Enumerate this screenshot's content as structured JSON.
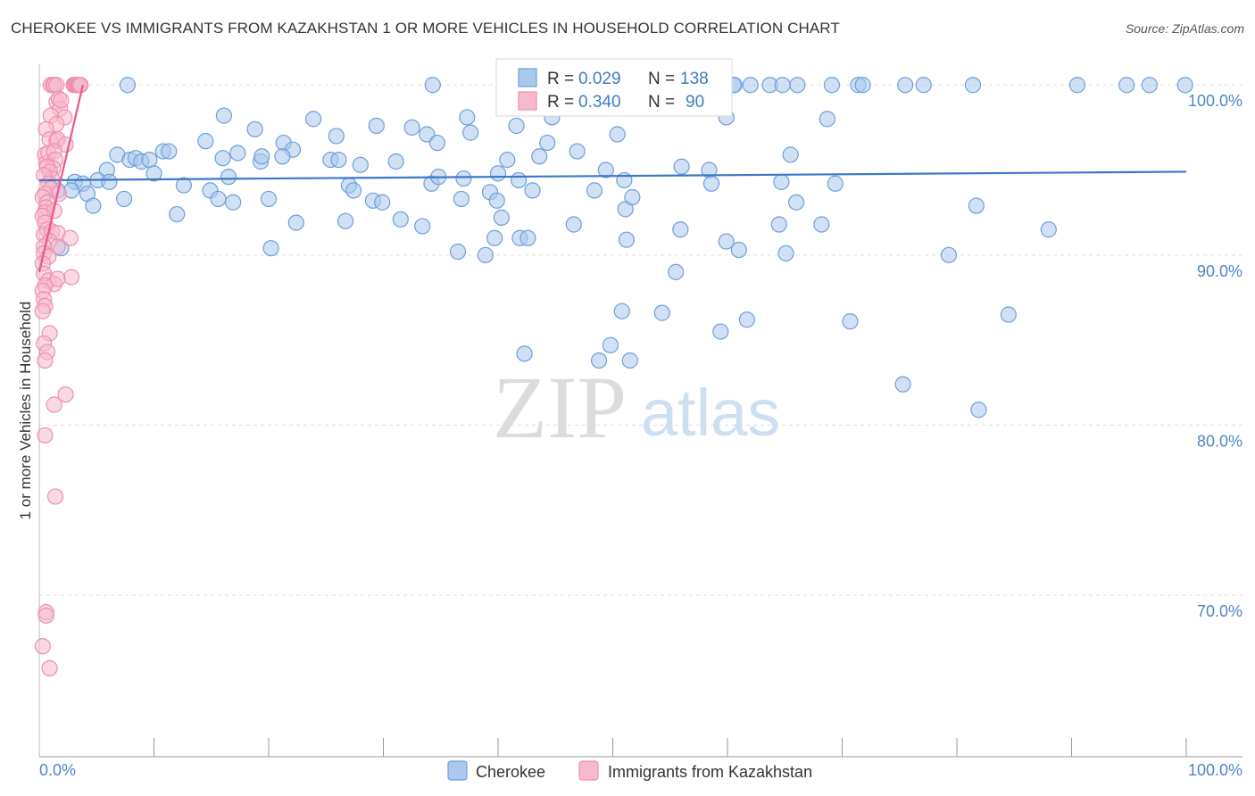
{
  "title": "CHEROKEE VS IMMIGRANTS FROM KAZAKHSTAN 1 OR MORE VEHICLES IN HOUSEHOLD CORRELATION CHART",
  "source": "Source: ZipAtlas.com",
  "watermark": {
    "zip": "ZIP",
    "atlas": "atlas"
  },
  "colors": {
    "cherokee_fill": "#a9c9ee",
    "cherokee_stroke": "#6f9fd8",
    "cherokee_line": "#3c78c8",
    "kazakh_fill": "#f7b9cc",
    "kazakh_stroke": "#ee8fae",
    "kazakh_line": "#e8588a",
    "tick_text": "#4f86c6",
    "grid": "#dddddd"
  },
  "stats_box": [
    {
      "r_label": "R =",
      "r_value": "0.029",
      "n_label": "N =",
      "n_value": "138"
    },
    {
      "r_label": "R =",
      "r_value": "0.340",
      "n_label": "N =",
      "n_value": "90"
    }
  ],
  "legend": [
    "Cherokee",
    "Immigrants from Kazakhstan"
  ],
  "chart_data": {
    "type": "scatter",
    "title": "CHEROKEE VS IMMIGRANTS FROM KAZAKHSTAN 1 OR MORE VEHICLES IN HOUSEHOLD CORRELATION CHART",
    "xlabel": "",
    "ylabel": "1 or more Vehicles in Household",
    "xlim": [
      0,
      100
    ],
    "ylim": [
      60.5,
      100.8
    ],
    "x_tick_labels": [
      "0.0%",
      "100.0%"
    ],
    "y_ticks": [
      100,
      90,
      80,
      70
    ],
    "y_tick_labels": [
      "100.0%",
      "90.0%",
      "80.0%",
      "70.0%"
    ],
    "grid": "horizontal dashed",
    "legend_position": "bottom-center",
    "series": [
      {
        "name": "Cherokee",
        "trend": [
          [
            0,
            94.4
          ],
          [
            100,
            94.9
          ]
        ],
        "points": [
          [
            3.4,
            100
          ],
          [
            7.7,
            100
          ],
          [
            34.3,
            100
          ],
          [
            46.8,
            100
          ],
          [
            48.9,
            100
          ],
          [
            51.2,
            100
          ],
          [
            52.8,
            100
          ],
          [
            54.9,
            100
          ],
          [
            60.5,
            100
          ],
          [
            60.6,
            100
          ],
          [
            62.0,
            100
          ],
          [
            63.7,
            100
          ],
          [
            64.8,
            100
          ],
          [
            66.1,
            100
          ],
          [
            69.1,
            100
          ],
          [
            71.4,
            100
          ],
          [
            71.8,
            100
          ],
          [
            75.5,
            100
          ],
          [
            77.1,
            100
          ],
          [
            81.4,
            100
          ],
          [
            90.5,
            100
          ],
          [
            94.8,
            100
          ],
          [
            96.8,
            100
          ],
          [
            99.9,
            100
          ],
          [
            16.1,
            98.2
          ],
          [
            23.9,
            98.0
          ],
          [
            37.3,
            98.1
          ],
          [
            44.7,
            98.1
          ],
          [
            59.9,
            98.1
          ],
          [
            68.7,
            98.0
          ],
          [
            25.9,
            97.0
          ],
          [
            29.4,
            97.6
          ],
          [
            32.5,
            97.5
          ],
          [
            41.6,
            97.6
          ],
          [
            18.8,
            97.4
          ],
          [
            33.8,
            97.1
          ],
          [
            37.6,
            97.2
          ],
          [
            44.3,
            96.6
          ],
          [
            50.4,
            97.1
          ],
          [
            59.0,
            98.9
          ],
          [
            21.3,
            96.6
          ],
          [
            22.1,
            96.2
          ],
          [
            14.5,
            96.7
          ],
          [
            46.9,
            96.1
          ],
          [
            34.7,
            96.6
          ],
          [
            6.8,
            95.9
          ],
          [
            7.9,
            95.6
          ],
          [
            8.4,
            95.7
          ],
          [
            8.9,
            95.5
          ],
          [
            9.6,
            95.6
          ],
          [
            10.8,
            96.1
          ],
          [
            11.3,
            96.1
          ],
          [
            16.0,
            95.7
          ],
          [
            17.3,
            96.0
          ],
          [
            19.3,
            95.5
          ],
          [
            19.4,
            95.8
          ],
          [
            21.2,
            95.8
          ],
          [
            25.4,
            95.6
          ],
          [
            26.1,
            95.6
          ],
          [
            28.0,
            95.3
          ],
          [
            31.1,
            95.5
          ],
          [
            40.8,
            95.6
          ],
          [
            43.6,
            95.8
          ],
          [
            49.4,
            95.0
          ],
          [
            56.0,
            95.2
          ],
          [
            58.4,
            95.0
          ],
          [
            65.5,
            95.9
          ],
          [
            40.0,
            94.8
          ],
          [
            5.9,
            95.0
          ],
          [
            10.0,
            94.8
          ],
          [
            16.5,
            94.6
          ],
          [
            27.0,
            94.1
          ],
          [
            34.2,
            94.2
          ],
          [
            34.8,
            94.6
          ],
          [
            37.0,
            94.5
          ],
          [
            41.8,
            94.4
          ],
          [
            51.0,
            94.4
          ],
          [
            58.6,
            94.2
          ],
          [
            64.7,
            94.3
          ],
          [
            69.4,
            94.2
          ],
          [
            3.1,
            94.3
          ],
          [
            3.8,
            94.2
          ],
          [
            5.1,
            94.4
          ],
          [
            6.1,
            94.3
          ],
          [
            2.8,
            93.8
          ],
          [
            1.6,
            93.8
          ],
          [
            4.2,
            93.6
          ],
          [
            7.4,
            93.3
          ],
          [
            12.6,
            94.1
          ],
          [
            14.9,
            93.8
          ],
          [
            15.6,
            93.3
          ],
          [
            27.4,
            93.8
          ],
          [
            29.1,
            93.2
          ],
          [
            29.9,
            93.1
          ],
          [
            36.8,
            93.3
          ],
          [
            39.3,
            93.7
          ],
          [
            39.9,
            93.2
          ],
          [
            43.0,
            93.8
          ],
          [
            48.4,
            93.8
          ],
          [
            51.1,
            92.7
          ],
          [
            51.7,
            93.4
          ],
          [
            4.7,
            92.9
          ],
          [
            12.0,
            92.4
          ],
          [
            16.9,
            93.1
          ],
          [
            20.0,
            93.3
          ],
          [
            40.3,
            92.2
          ],
          [
            31.5,
            92.1
          ],
          [
            22.4,
            91.9
          ],
          [
            26.7,
            92.0
          ],
          [
            41.9,
            91.0
          ],
          [
            42.6,
            91.0
          ],
          [
            46.6,
            91.8
          ],
          [
            51.2,
            90.9
          ],
          [
            55.9,
            91.5
          ],
          [
            64.5,
            91.8
          ],
          [
            66.0,
            93.1
          ],
          [
            33.4,
            91.7
          ],
          [
            39.7,
            91.0
          ],
          [
            20.2,
            90.4
          ],
          [
            36.5,
            90.2
          ],
          [
            38.9,
            90.0
          ],
          [
            59.9,
            90.8
          ],
          [
            61.0,
            90.3
          ],
          [
            65.1,
            90.1
          ],
          [
            68.2,
            91.8
          ],
          [
            79.3,
            90.0
          ],
          [
            1.9,
            90.4
          ],
          [
            81.7,
            92.9
          ],
          [
            88.0,
            91.5
          ],
          [
            55.5,
            89.0
          ],
          [
            50.8,
            86.7
          ],
          [
            54.3,
            86.6
          ],
          [
            59.4,
            85.5
          ],
          [
            61.7,
            86.2
          ],
          [
            70.7,
            86.1
          ],
          [
            84.5,
            86.5
          ],
          [
            42.3,
            84.2
          ],
          [
            48.8,
            83.8
          ],
          [
            49.8,
            84.7
          ],
          [
            51.5,
            83.8
          ],
          [
            75.3,
            82.4
          ],
          [
            81.9,
            80.9
          ]
        ]
      },
      {
        "name": "Immigrants from Kazakhstan",
        "trend": [
          [
            0,
            89.0
          ],
          [
            3.8,
            100.0
          ]
        ],
        "points": [
          [
            1.0,
            100
          ],
          [
            1.2,
            100
          ],
          [
            1.3,
            100
          ],
          [
            1.5,
            100
          ],
          [
            3.0,
            100
          ],
          [
            3.1,
            100
          ],
          [
            3.2,
            100
          ],
          [
            3.3,
            100
          ],
          [
            3.4,
            100
          ],
          [
            3.5,
            100
          ],
          [
            3.6,
            100
          ],
          [
            1.5,
            99.0
          ],
          [
            1.7,
            99.2
          ],
          [
            1.8,
            98.6
          ],
          [
            1.9,
            99.1
          ],
          [
            2.2,
            98.1
          ],
          [
            1.0,
            98.2
          ],
          [
            1.5,
            97.7
          ],
          [
            0.6,
            97.4
          ],
          [
            0.9,
            96.8
          ],
          [
            1.5,
            96.7
          ],
          [
            1.6,
            96.8
          ],
          [
            2.3,
            96.5
          ],
          [
            0.5,
            95.9
          ],
          [
            0.6,
            95.4
          ],
          [
            0.8,
            96.0
          ],
          [
            1.3,
            96.1
          ],
          [
            1.4,
            95.6
          ],
          [
            1.2,
            95.1
          ],
          [
            0.7,
            95.2
          ],
          [
            0.9,
            94.9
          ],
          [
            1.1,
            94.5
          ],
          [
            0.4,
            94.7
          ],
          [
            0.8,
            94.2
          ],
          [
            1.0,
            93.9
          ],
          [
            1.7,
            93.6
          ],
          [
            0.5,
            93.6
          ],
          [
            0.3,
            93.4
          ],
          [
            0.7,
            93.1
          ],
          [
            0.6,
            92.8
          ],
          [
            0.5,
            92.5
          ],
          [
            1.3,
            92.6
          ],
          [
            0.3,
            92.3
          ],
          [
            0.5,
            91.9
          ],
          [
            0.7,
            91.5
          ],
          [
            0.4,
            91.2
          ],
          [
            1.1,
            91.4
          ],
          [
            1.6,
            91.3
          ],
          [
            2.7,
            91.0
          ],
          [
            0.9,
            90.8
          ],
          [
            1.6,
            90.5
          ],
          [
            0.4,
            90.5
          ],
          [
            0.4,
            90.1
          ],
          [
            0.8,
            89.9
          ],
          [
            0.3,
            89.5
          ],
          [
            0.4,
            88.9
          ],
          [
            0.8,
            88.5
          ],
          [
            1.3,
            88.3
          ],
          [
            0.5,
            88.2
          ],
          [
            2.8,
            88.7
          ],
          [
            1.6,
            88.6
          ],
          [
            0.3,
            87.9
          ],
          [
            0.4,
            87.4
          ],
          [
            0.5,
            87.0
          ],
          [
            0.3,
            86.7
          ],
          [
            0.9,
            85.4
          ],
          [
            0.4,
            84.8
          ],
          [
            0.7,
            84.3
          ],
          [
            0.5,
            83.8
          ],
          [
            2.3,
            81.8
          ],
          [
            1.3,
            81.2
          ],
          [
            0.5,
            79.4
          ],
          [
            1.4,
            75.8
          ],
          [
            0.6,
            69.0
          ],
          [
            0.6,
            68.8
          ],
          [
            0.3,
            67.0
          ],
          [
            0.9,
            65.7
          ]
        ]
      }
    ]
  }
}
